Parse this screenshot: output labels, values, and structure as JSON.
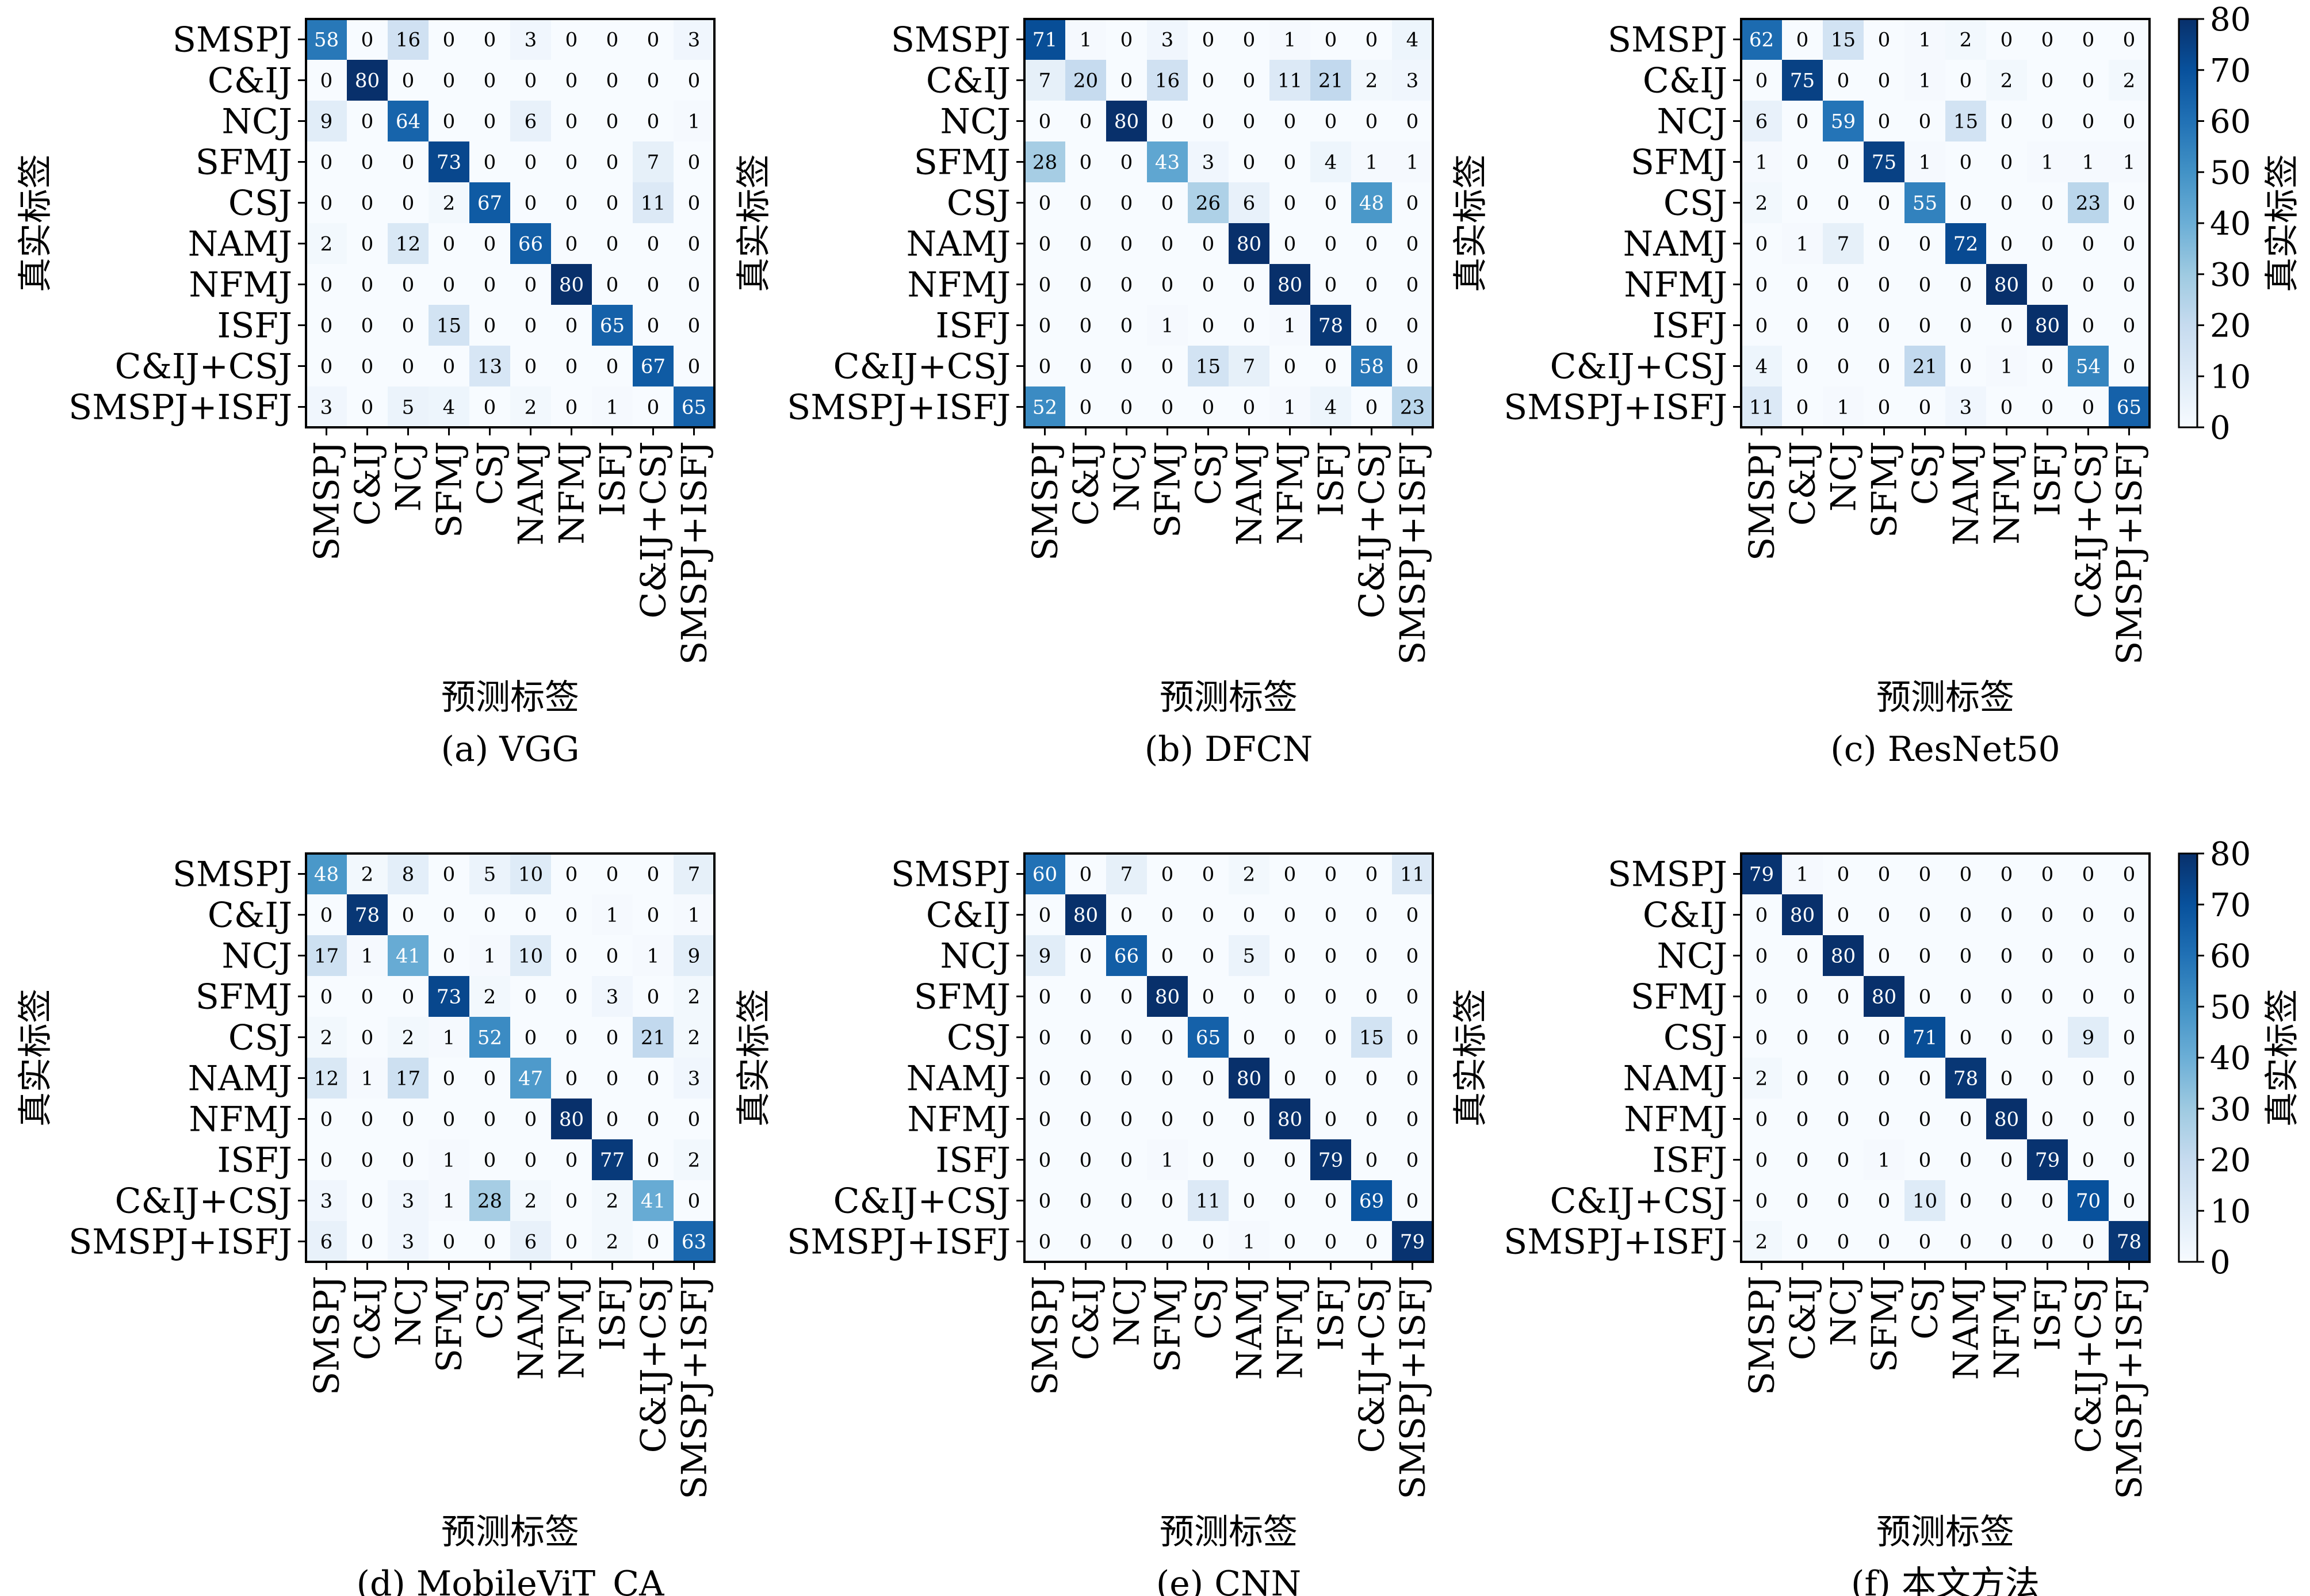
{
  "figure": {
    "y_axis_label": "真实标签",
    "x_axis_label": "预测标签",
    "colorbar_label": "真实标签"
  },
  "colors": {
    "min": "#f7fbff",
    "max": "#08306b",
    "text_dark": "#000000",
    "text_light": "#ffffff"
  },
  "chart_data": [
    {
      "type": "heatmap",
      "caption": "(a) VGG",
      "xlabel": "预测标签",
      "ylabel": "真实标签",
      "labels": [
        "SMSPJ",
        "C&IJ",
        "NCJ",
        "SFMJ",
        "CSJ",
        "NAMJ",
        "NFMJ",
        "ISFJ",
        "C&IJ+CSJ",
        "SMSPJ+ISFJ"
      ],
      "range": [
        0,
        80
      ],
      "matrix": [
        [
          58,
          0,
          16,
          0,
          0,
          3,
          0,
          0,
          0,
          3
        ],
        [
          0,
          80,
          0,
          0,
          0,
          0,
          0,
          0,
          0,
          0
        ],
        [
          9,
          0,
          64,
          0,
          0,
          6,
          0,
          0,
          0,
          1
        ],
        [
          0,
          0,
          0,
          73,
          0,
          0,
          0,
          0,
          7,
          0
        ],
        [
          0,
          0,
          0,
          2,
          67,
          0,
          0,
          0,
          11,
          0
        ],
        [
          2,
          0,
          12,
          0,
          0,
          66,
          0,
          0,
          0,
          0
        ],
        [
          0,
          0,
          0,
          0,
          0,
          0,
          80,
          0,
          0,
          0
        ],
        [
          0,
          0,
          0,
          15,
          0,
          0,
          0,
          65,
          0,
          0
        ],
        [
          0,
          0,
          0,
          0,
          13,
          0,
          0,
          0,
          67,
          0
        ],
        [
          3,
          0,
          5,
          4,
          0,
          2,
          0,
          1,
          0,
          65
        ]
      ]
    },
    {
      "type": "heatmap",
      "caption": "(b) DFCN",
      "xlabel": "预测标签",
      "ylabel": "真实标签",
      "labels": [
        "SMSPJ",
        "C&IJ",
        "NCJ",
        "SFMJ",
        "CSJ",
        "NAMJ",
        "NFMJ",
        "ISFJ",
        "C&IJ+CSJ",
        "SMSPJ+ISFJ"
      ],
      "range": [
        0,
        80
      ],
      "matrix": [
        [
          71,
          1,
          0,
          3,
          0,
          0,
          1,
          0,
          0,
          4
        ],
        [
          7,
          20,
          0,
          16,
          0,
          0,
          11,
          21,
          2,
          3
        ],
        [
          0,
          0,
          80,
          0,
          0,
          0,
          0,
          0,
          0,
          0
        ],
        [
          28,
          0,
          0,
          43,
          3,
          0,
          0,
          4,
          1,
          1
        ],
        [
          0,
          0,
          0,
          0,
          26,
          6,
          0,
          0,
          48,
          0
        ],
        [
          0,
          0,
          0,
          0,
          0,
          80,
          0,
          0,
          0,
          0
        ],
        [
          0,
          0,
          0,
          0,
          0,
          0,
          80,
          0,
          0,
          0
        ],
        [
          0,
          0,
          0,
          1,
          0,
          0,
          1,
          78,
          0,
          0
        ],
        [
          0,
          0,
          0,
          0,
          15,
          7,
          0,
          0,
          58,
          0
        ],
        [
          52,
          0,
          0,
          0,
          0,
          0,
          1,
          4,
          0,
          23
        ]
      ]
    },
    {
      "type": "heatmap",
      "caption": "(c) ResNet50",
      "xlabel": "预测标签",
      "ylabel": "真实标签",
      "labels": [
        "SMSPJ",
        "C&IJ",
        "NCJ",
        "SFMJ",
        "CSJ",
        "NAMJ",
        "NFMJ",
        "ISFJ",
        "C&IJ+CSJ",
        "SMSPJ+ISFJ"
      ],
      "range": [
        0,
        80
      ],
      "colorbar_ticks": [
        0,
        10,
        20,
        30,
        40,
        50,
        60,
        70,
        80
      ],
      "matrix": [
        [
          62,
          0,
          15,
          0,
          1,
          2,
          0,
          0,
          0,
          0
        ],
        [
          0,
          75,
          0,
          0,
          1,
          0,
          2,
          0,
          0,
          2
        ],
        [
          6,
          0,
          59,
          0,
          0,
          15,
          0,
          0,
          0,
          0
        ],
        [
          1,
          0,
          0,
          75,
          1,
          0,
          0,
          1,
          1,
          1
        ],
        [
          2,
          0,
          0,
          0,
          55,
          0,
          0,
          0,
          23,
          0
        ],
        [
          0,
          1,
          7,
          0,
          0,
          72,
          0,
          0,
          0,
          0
        ],
        [
          0,
          0,
          0,
          0,
          0,
          0,
          80,
          0,
          0,
          0
        ],
        [
          0,
          0,
          0,
          0,
          0,
          0,
          0,
          80,
          0,
          0
        ],
        [
          4,
          0,
          0,
          0,
          21,
          0,
          1,
          0,
          54,
          0
        ],
        [
          11,
          0,
          1,
          0,
          0,
          3,
          0,
          0,
          0,
          65
        ]
      ]
    },
    {
      "type": "heatmap",
      "caption": "(d) MobileViT_CA",
      "xlabel": "预测标签",
      "ylabel": "真实标签",
      "labels": [
        "SMSPJ",
        "C&IJ",
        "NCJ",
        "SFMJ",
        "CSJ",
        "NAMJ",
        "NFMJ",
        "ISFJ",
        "C&IJ+CSJ",
        "SMSPJ+ISFJ"
      ],
      "range": [
        0,
        80
      ],
      "matrix": [
        [
          48,
          2,
          8,
          0,
          5,
          10,
          0,
          0,
          0,
          7
        ],
        [
          0,
          78,
          0,
          0,
          0,
          0,
          0,
          1,
          0,
          1
        ],
        [
          17,
          1,
          41,
          0,
          1,
          10,
          0,
          0,
          1,
          9
        ],
        [
          0,
          0,
          0,
          73,
          2,
          0,
          0,
          3,
          0,
          2
        ],
        [
          2,
          0,
          2,
          1,
          52,
          0,
          0,
          0,
          21,
          2
        ],
        [
          12,
          1,
          17,
          0,
          0,
          47,
          0,
          0,
          0,
          3
        ],
        [
          0,
          0,
          0,
          0,
          0,
          0,
          80,
          0,
          0,
          0
        ],
        [
          0,
          0,
          0,
          1,
          0,
          0,
          0,
          77,
          0,
          2
        ],
        [
          3,
          0,
          3,
          1,
          28,
          2,
          0,
          2,
          41,
          0
        ],
        [
          6,
          0,
          3,
          0,
          0,
          6,
          0,
          2,
          0,
          63
        ]
      ]
    },
    {
      "type": "heatmap",
      "caption": "(e) CNN",
      "xlabel": "预测标签",
      "ylabel": "真实标签",
      "labels": [
        "SMSPJ",
        "C&IJ",
        "NCJ",
        "SFMJ",
        "CSJ",
        "NAMJ",
        "NFMJ",
        "ISFJ",
        "C&IJ+CSJ",
        "SMSPJ+ISFJ"
      ],
      "range": [
        0,
        80
      ],
      "matrix": [
        [
          60,
          0,
          7,
          0,
          0,
          2,
          0,
          0,
          0,
          11
        ],
        [
          0,
          80,
          0,
          0,
          0,
          0,
          0,
          0,
          0,
          0
        ],
        [
          9,
          0,
          66,
          0,
          0,
          5,
          0,
          0,
          0,
          0
        ],
        [
          0,
          0,
          0,
          80,
          0,
          0,
          0,
          0,
          0,
          0
        ],
        [
          0,
          0,
          0,
          0,
          65,
          0,
          0,
          0,
          15,
          0
        ],
        [
          0,
          0,
          0,
          0,
          0,
          80,
          0,
          0,
          0,
          0
        ],
        [
          0,
          0,
          0,
          0,
          0,
          0,
          80,
          0,
          0,
          0
        ],
        [
          0,
          0,
          0,
          1,
          0,
          0,
          0,
          79,
          0,
          0
        ],
        [
          0,
          0,
          0,
          0,
          11,
          0,
          0,
          0,
          69,
          0
        ],
        [
          0,
          0,
          0,
          0,
          0,
          1,
          0,
          0,
          0,
          79
        ]
      ]
    },
    {
      "type": "heatmap",
      "caption": "(f) 本文方法",
      "xlabel": "预测标签",
      "ylabel": "真实标签",
      "labels": [
        "SMSPJ",
        "C&IJ",
        "NCJ",
        "SFMJ",
        "CSJ",
        "NAMJ",
        "NFMJ",
        "ISFJ",
        "C&IJ+CSJ",
        "SMSPJ+ISFJ"
      ],
      "range": [
        0,
        80
      ],
      "colorbar_ticks": [
        0,
        10,
        20,
        30,
        40,
        50,
        60,
        70,
        80
      ],
      "matrix": [
        [
          79,
          1,
          0,
          0,
          0,
          0,
          0,
          0,
          0,
          0
        ],
        [
          0,
          80,
          0,
          0,
          0,
          0,
          0,
          0,
          0,
          0
        ],
        [
          0,
          0,
          80,
          0,
          0,
          0,
          0,
          0,
          0,
          0
        ],
        [
          0,
          0,
          0,
          80,
          0,
          0,
          0,
          0,
          0,
          0
        ],
        [
          0,
          0,
          0,
          0,
          71,
          0,
          0,
          0,
          9,
          0
        ],
        [
          2,
          0,
          0,
          0,
          0,
          78,
          0,
          0,
          0,
          0
        ],
        [
          0,
          0,
          0,
          0,
          0,
          0,
          80,
          0,
          0,
          0
        ],
        [
          0,
          0,
          0,
          1,
          0,
          0,
          0,
          79,
          0,
          0
        ],
        [
          0,
          0,
          0,
          0,
          10,
          0,
          0,
          0,
          70,
          0
        ],
        [
          2,
          0,
          0,
          0,
          0,
          0,
          0,
          0,
          0,
          78
        ]
      ]
    }
  ]
}
